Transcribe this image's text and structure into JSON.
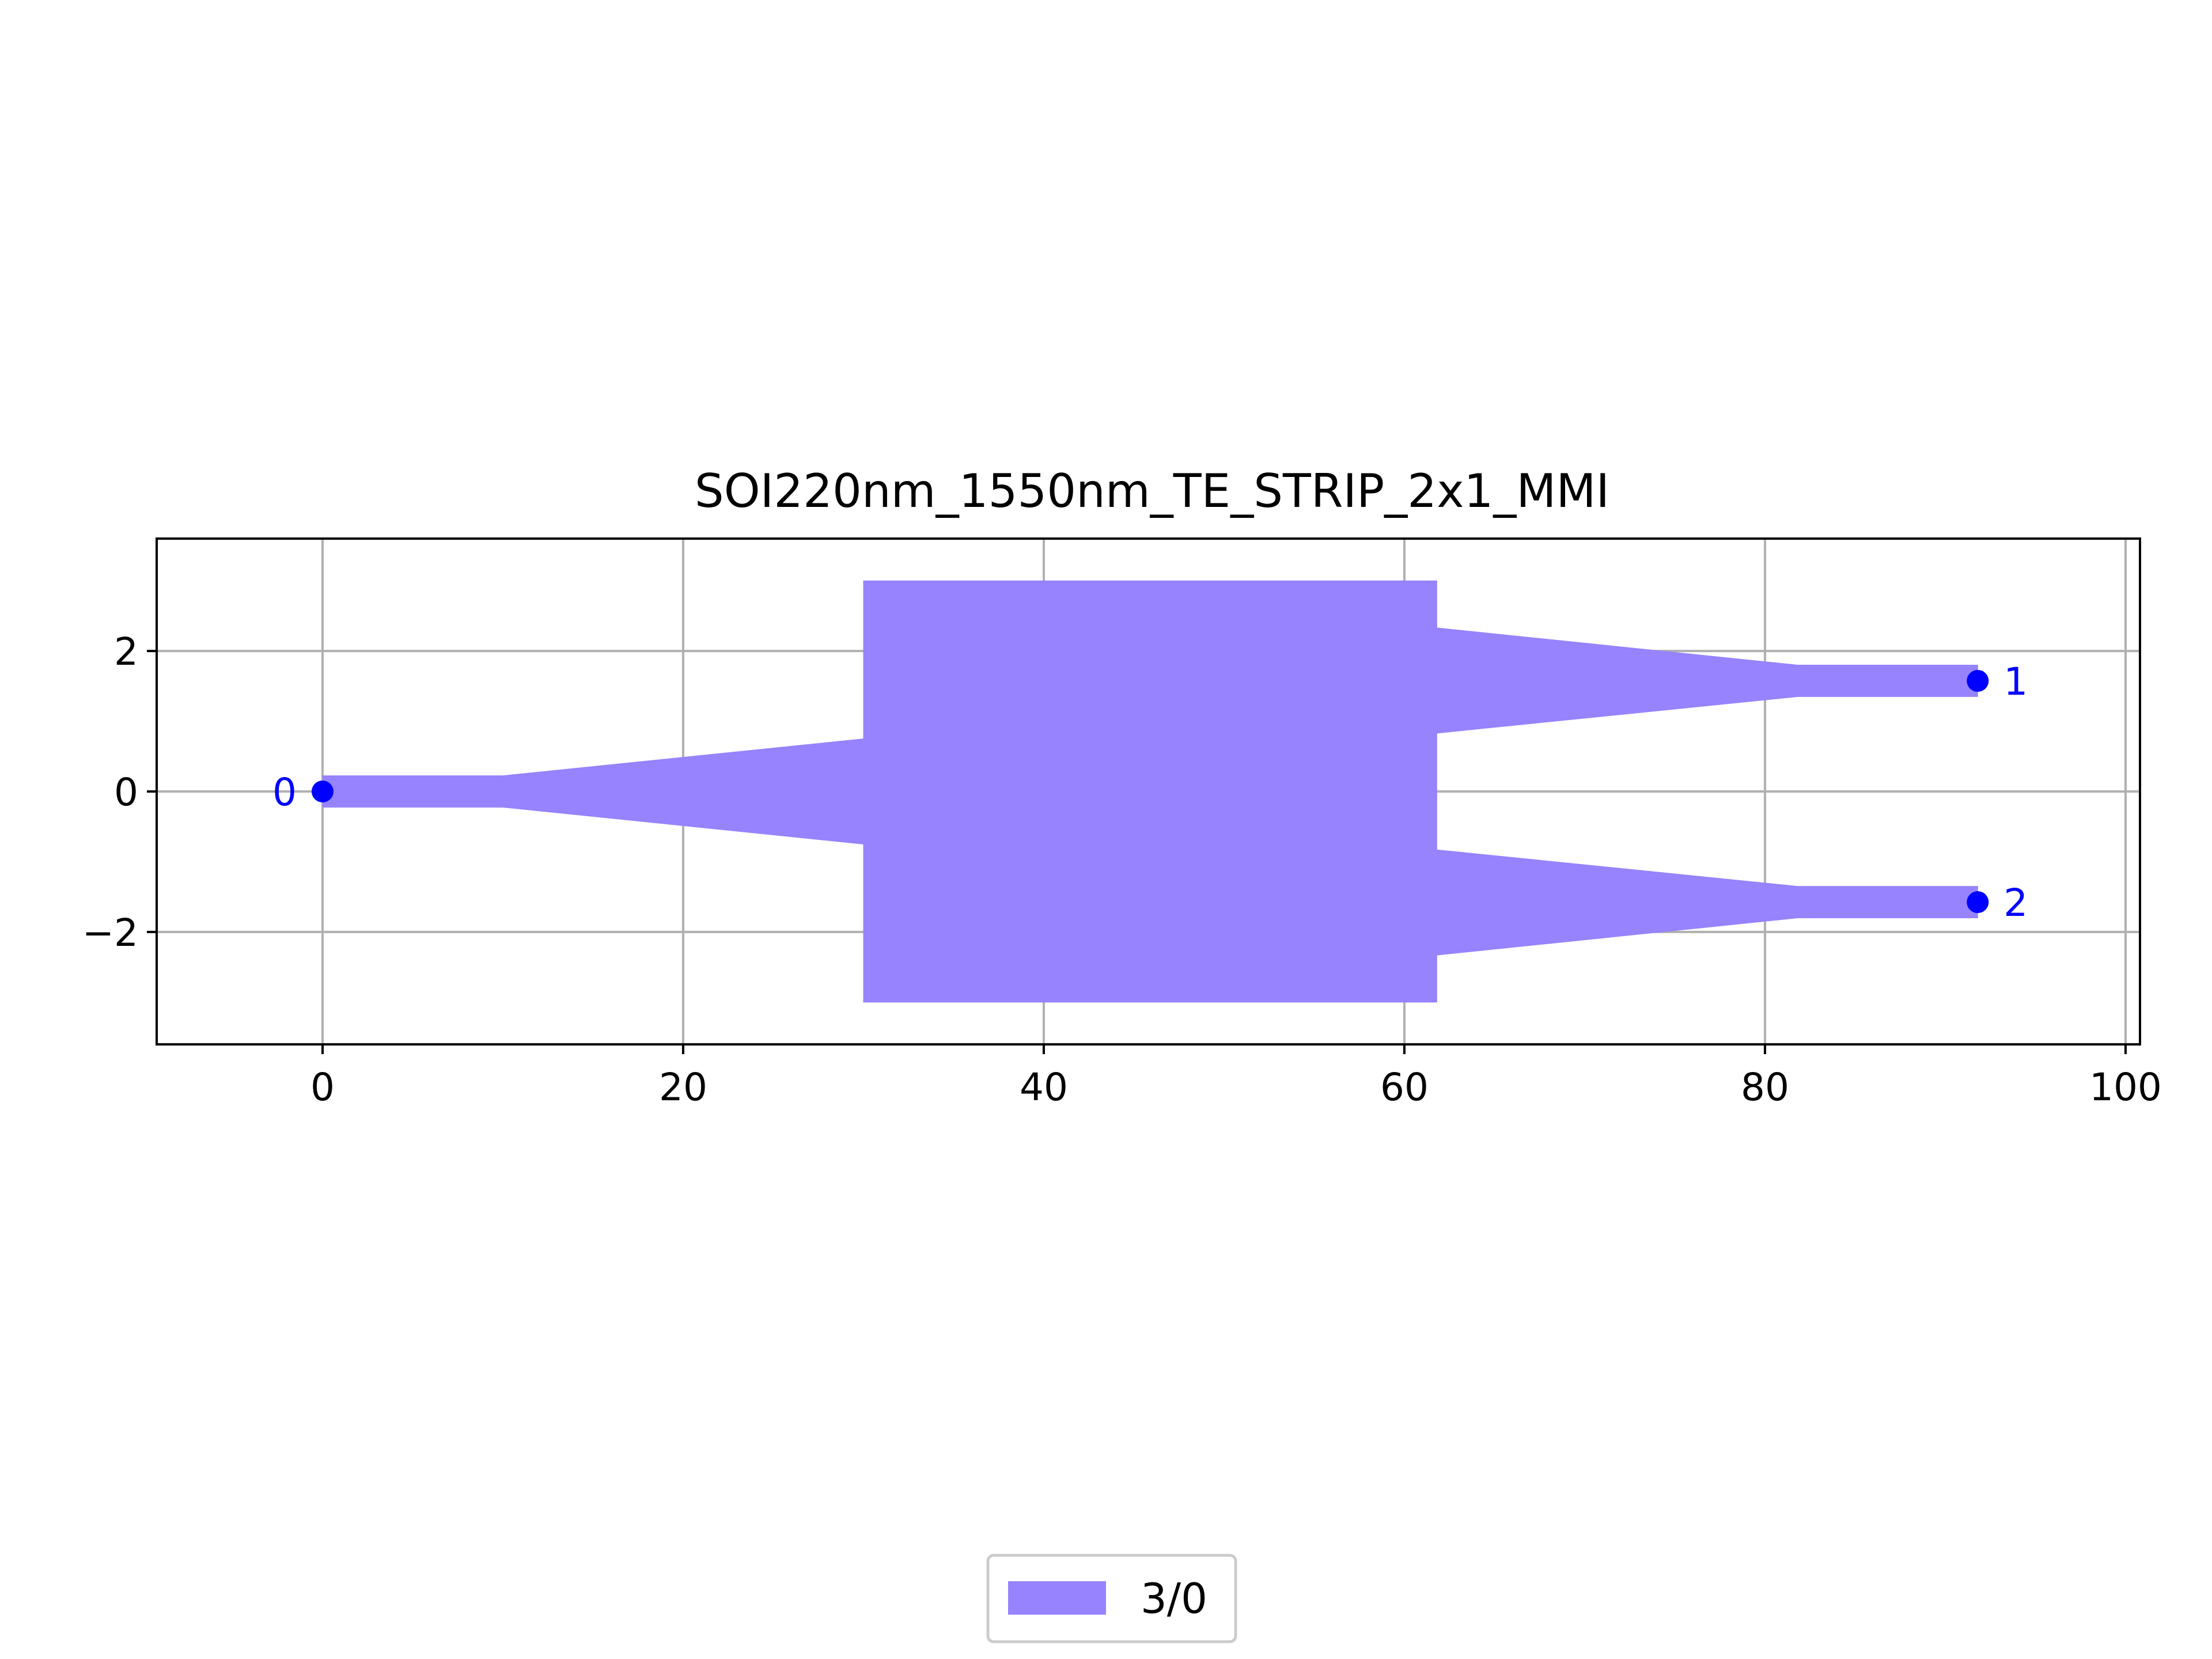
{
  "chart_data": {
    "type": "layout",
    "title": "SOI220nm_1550nm_TE_STRIP_2x1_MMI",
    "xlabel": "",
    "ylabel": "",
    "xlim": [
      -9.2,
      100.8
    ],
    "ylim": [
      -3.6,
      3.6
    ],
    "xticks": [
      0,
      20,
      40,
      60,
      80,
      100
    ],
    "yticks": [
      2,
      0,
      -2
    ],
    "grid": true,
    "legend": {
      "placement": "bottom-center",
      "entries": [
        {
          "label": "3/0",
          "color": "#9683fd"
        }
      ]
    },
    "layer": {
      "name": "3/0",
      "color": "#9683fd"
    },
    "polygons": [
      {
        "name": "input-waveguide",
        "points": [
          [
            0,
            0.225
          ],
          [
            10,
            0.225
          ],
          [
            10,
            -0.225
          ],
          [
            0,
            -0.225
          ]
        ]
      },
      {
        "name": "input-taper",
        "points": [
          [
            10,
            0.225
          ],
          [
            30,
            0.75
          ],
          [
            30,
            -0.75
          ],
          [
            10,
            -0.225
          ]
        ]
      },
      {
        "name": "mmi-body",
        "points": [
          [
            30,
            3.0
          ],
          [
            61.8,
            3.0
          ],
          [
            61.8,
            -3.0
          ],
          [
            30,
            -3.0
          ]
        ]
      },
      {
        "name": "output-taper-top",
        "points": [
          [
            61.8,
            2.33
          ],
          [
            81.8,
            1.8
          ],
          [
            81.8,
            1.35
          ],
          [
            61.8,
            0.83
          ]
        ]
      },
      {
        "name": "output-waveguide-top",
        "points": [
          [
            81.8,
            1.8
          ],
          [
            91.8,
            1.8
          ],
          [
            91.8,
            1.35
          ],
          [
            81.8,
            1.35
          ]
        ]
      },
      {
        "name": "output-taper-bottom",
        "points": [
          [
            61.8,
            -0.83
          ],
          [
            81.8,
            -1.35
          ],
          [
            81.8,
            -1.8
          ],
          [
            61.8,
            -2.33
          ]
        ]
      },
      {
        "name": "output-waveguide-bottom",
        "points": [
          [
            81.8,
            -1.35
          ],
          [
            91.8,
            -1.35
          ],
          [
            91.8,
            -1.8
          ],
          [
            81.8,
            -1.8
          ]
        ]
      }
    ],
    "ports": [
      {
        "label": "0",
        "x": 0,
        "y": 0,
        "label_side": "left"
      },
      {
        "label": "1",
        "x": 91.8,
        "y": 1.575,
        "label_side": "right"
      },
      {
        "label": "2",
        "x": 91.8,
        "y": -1.575,
        "label_side": "right"
      }
    ],
    "port_color": "#0000ff"
  }
}
